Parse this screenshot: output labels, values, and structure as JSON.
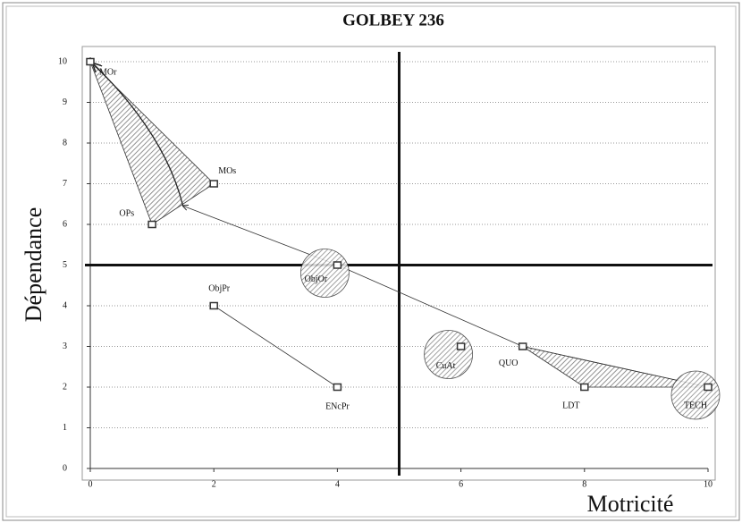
{
  "chart_data": {
    "type": "scatter",
    "title": "GOLBEY 236",
    "xlabel": "Motricité",
    "ylabel": "Dépendance",
    "labels": [
      "MOr",
      "MOs",
      "OPs",
      "ObjOr",
      "ObjPr",
      "ENcPr",
      "CuAt",
      "QUO",
      "LDT",
      "TECH"
    ],
    "x": [
      0,
      2,
      1,
      4,
      2,
      4,
      6,
      7,
      8,
      10
    ],
    "values": [
      10,
      7,
      6,
      5,
      4,
      2,
      3,
      3,
      2,
      2
    ],
    "xlim": [
      0,
      10
    ],
    "ylim": [
      0,
      10
    ],
    "xticks": [
      0,
      2,
      4,
      6,
      8,
      10
    ],
    "yticks": [
      0,
      1,
      2,
      3,
      4,
      5,
      6,
      7,
      8,
      9,
      10
    ],
    "vlines": [
      5
    ],
    "hlines": [
      5
    ],
    "grid": true,
    "color": "#333333"
  }
}
